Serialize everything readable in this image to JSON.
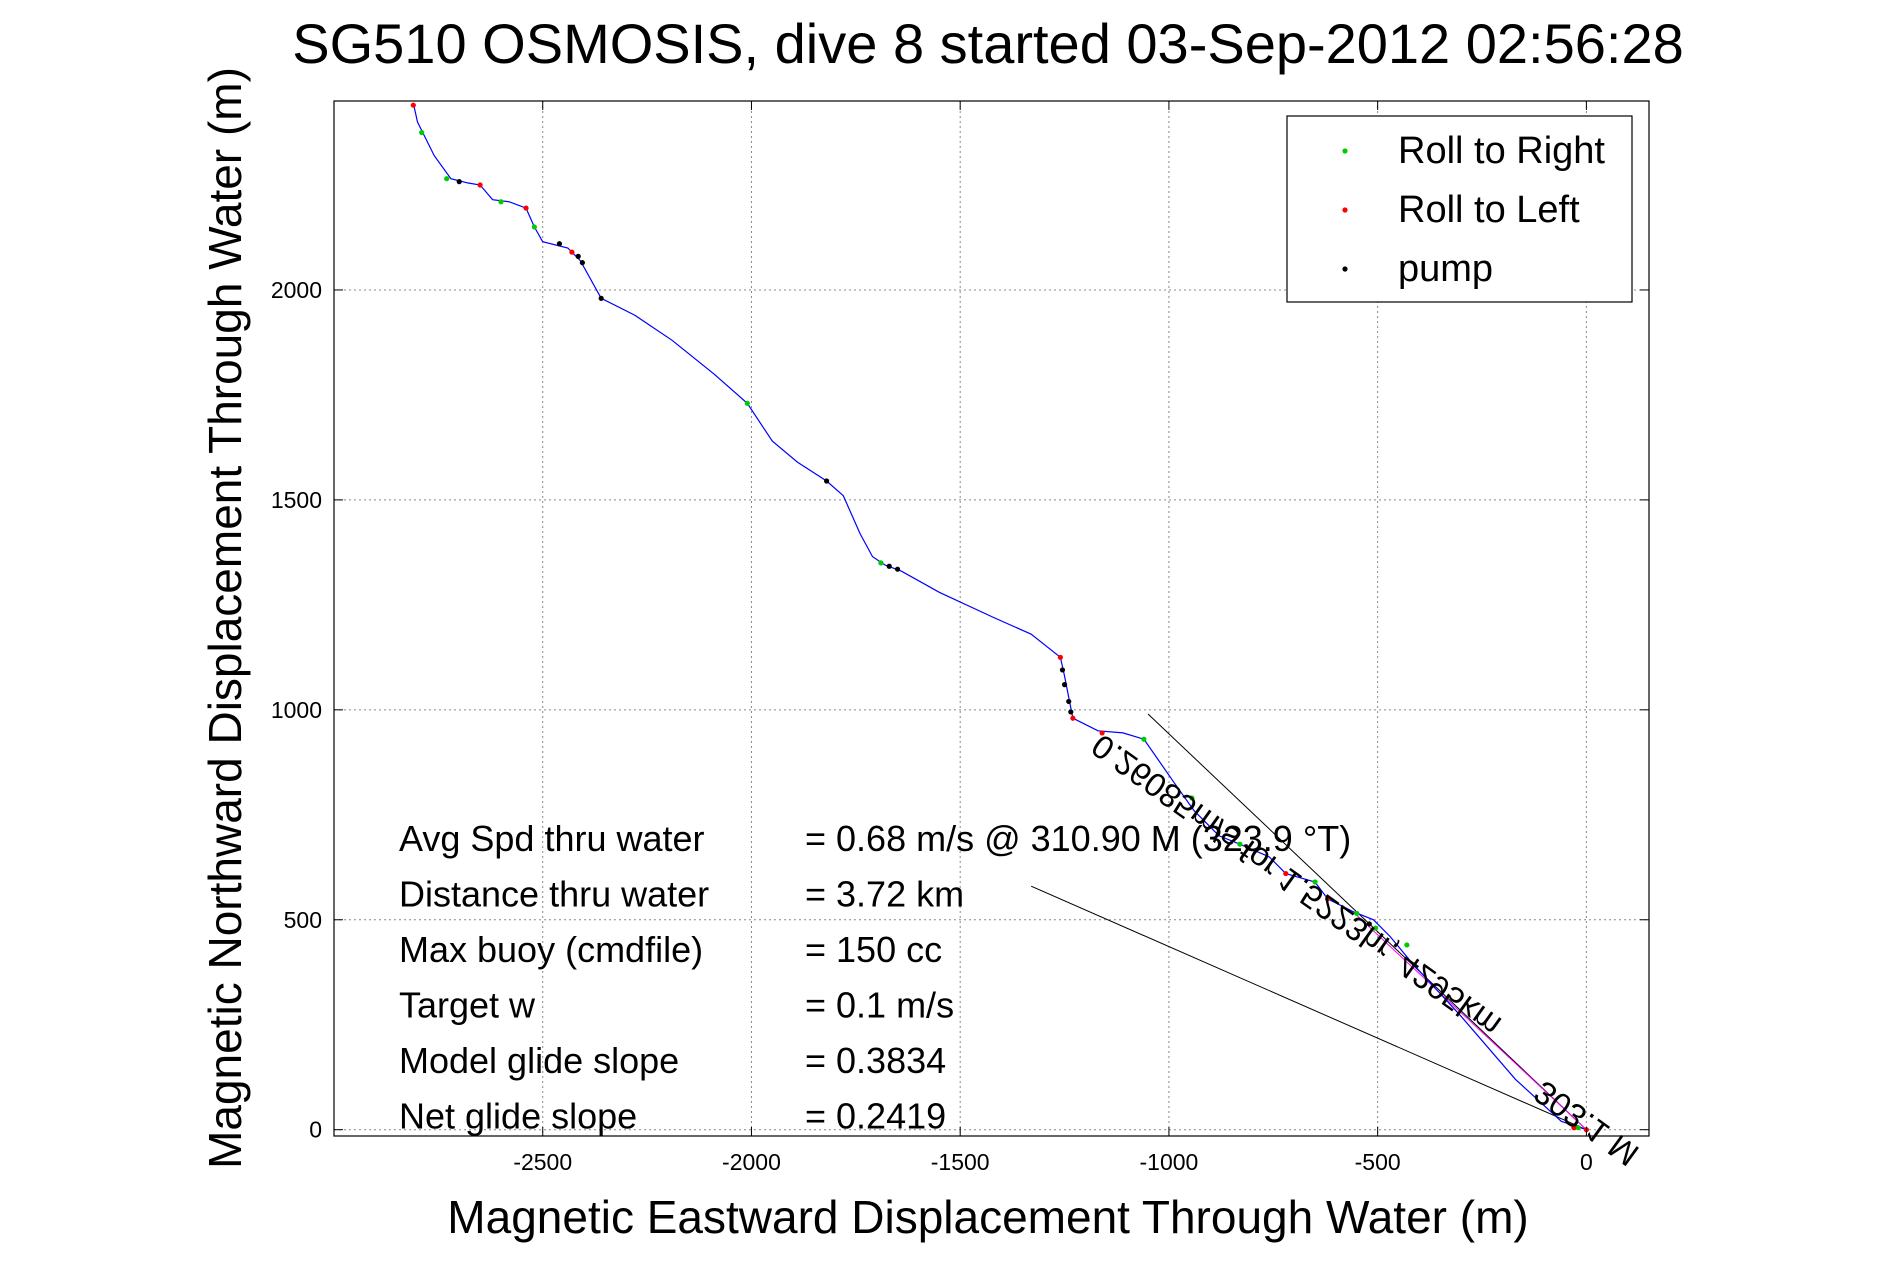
{
  "chart_data": {
    "type": "line",
    "title": "SG510 OSMOSIS, dive 8 started 03-Sep-2012 02:56:28",
    "xlabel": "Magnetic Eastward Displacement Through Water (m)",
    "ylabel": "Magnetic Northward Displacement Through Water (m)",
    "xlim": [
      -3000,
      150
    ],
    "ylim": [
      -15,
      2450
    ],
    "xticks": [
      -2500,
      -2000,
      -1500,
      -1000,
      -500,
      0
    ],
    "yticks": [
      0,
      500,
      1000,
      1500,
      2000
    ],
    "grid": true,
    "legend_position": "top-right",
    "legend": [
      {
        "label": "Roll to Right",
        "color": "#00cc00"
      },
      {
        "label": "Roll to Left",
        "color": "#ff0000"
      },
      {
        "label": "pump",
        "color": "#000000"
      }
    ],
    "track": {
      "color": "#0000ff",
      "points": [
        [
          -2810,
          2445
        ],
        [
          -2800,
          2400
        ],
        [
          -2760,
          2320
        ],
        [
          -2720,
          2265
        ],
        [
          -2680,
          2255
        ],
        [
          -2650,
          2250
        ],
        [
          -2620,
          2215
        ],
        [
          -2580,
          2210
        ],
        [
          -2540,
          2195
        ],
        [
          -2520,
          2150
        ],
        [
          -2500,
          2115
        ],
        [
          -2440,
          2100
        ],
        [
          -2410,
          2070
        ],
        [
          -2360,
          1980
        ],
        [
          -2280,
          1940
        ],
        [
          -2190,
          1880
        ],
        [
          -2090,
          1800
        ],
        [
          -2010,
          1730
        ],
        [
          -1950,
          1640
        ],
        [
          -1890,
          1590
        ],
        [
          -1820,
          1545
        ],
        [
          -1780,
          1510
        ],
        [
          -1740,
          1420
        ],
        [
          -1710,
          1365
        ],
        [
          -1680,
          1345
        ],
        [
          -1640,
          1330
        ],
        [
          -1550,
          1280
        ],
        [
          -1420,
          1220
        ],
        [
          -1330,
          1180
        ],
        [
          -1260,
          1125
        ],
        [
          -1250,
          1080
        ],
        [
          -1240,
          1030
        ],
        [
          -1230,
          980
        ],
        [
          -1170,
          950
        ],
        [
          -1110,
          945
        ],
        [
          -1060,
          930
        ],
        [
          -990,
          830
        ],
        [
          -940,
          760
        ],
        [
          -880,
          700
        ],
        [
          -830,
          680
        ],
        [
          -760,
          650
        ],
        [
          -720,
          610
        ],
        [
          -650,
          590
        ],
        [
          -620,
          550
        ],
        [
          -560,
          520
        ],
        [
          -510,
          500
        ],
        [
          -470,
          460
        ],
        [
          -420,
          400
        ],
        [
          -300,
          270
        ],
        [
          -170,
          120
        ],
        [
          -60,
          20
        ],
        [
          0,
          0
        ]
      ]
    },
    "roll_right": [
      [
        -2790,
        2375
      ],
      [
        -2730,
        2265
      ],
      [
        -2600,
        2210
      ],
      [
        -2520,
        2150
      ],
      [
        -2010,
        1730
      ],
      [
        -1690,
        1350
      ],
      [
        -1060,
        930
      ],
      [
        -945,
        790
      ],
      [
        -830,
        680
      ],
      [
        -650,
        590
      ],
      [
        -550,
        515
      ],
      [
        -505,
        480
      ],
      [
        -430,
        440
      ],
      [
        -20,
        5
      ]
    ],
    "roll_left": [
      [
        -2810,
        2440
      ],
      [
        -2650,
        2250
      ],
      [
        -2540,
        2195
      ],
      [
        -2430,
        2090
      ],
      [
        -1260,
        1125
      ],
      [
        -1230,
        980
      ],
      [
        -1160,
        945
      ],
      [
        -720,
        610
      ],
      [
        -620,
        550
      ],
      [
        -30,
        5
      ],
      [
        0,
        0
      ]
    ],
    "pump": [
      [
        -2700,
        2258
      ],
      [
        -2460,
        2110
      ],
      [
        -2415,
        2080
      ],
      [
        -2405,
        2065
      ],
      [
        -2360,
        1980
      ],
      [
        -1820,
        1545
      ],
      [
        -1670,
        1342
      ],
      [
        -1650,
        1335
      ],
      [
        -1255,
        1095
      ],
      [
        -1250,
        1060
      ],
      [
        -1240,
        1020
      ],
      [
        -1235,
        995
      ],
      [
        -520,
        490
      ]
    ],
    "reference_lines": [
      {
        "from": [
          -1050,
          990
        ],
        "to": [
          0,
          0
        ],
        "color": "#000000"
      },
      {
        "from": [
          -1330,
          580
        ],
        "to": [
          0,
          0
        ],
        "color": "#000000"
      },
      {
        "from": [
          -560,
          520
        ],
        "to": [
          0,
          0
        ],
        "color": "#ff00ff"
      }
    ],
    "annotations": [
      {
        "text": "0.26085m/s for 1.5223hr, 4295km",
        "x": -1160,
        "y": 945,
        "rotate": 35.6,
        "mirrored": true
      },
      {
        "text": "303.1 M",
        "x": -100,
        "y": 120,
        "rotate": 36,
        "mirrored": true
      }
    ],
    "stats": [
      {
        "label": "Avg Spd thru water",
        "value": "=  0.68 m/s @ 310.90 M (323.9 °T)"
      },
      {
        "label": "Distance thru water",
        "value": "=  3.72 km"
      },
      {
        "label": "Max buoy (cmdfile)",
        "value": "= 150 cc"
      },
      {
        "label": "Target w",
        "value": "= 0.1 m/s"
      },
      {
        "label": "Model glide slope",
        "value": "= 0.3834"
      },
      {
        "label": "Net glide slope",
        "value": "= 0.2419"
      }
    ]
  }
}
